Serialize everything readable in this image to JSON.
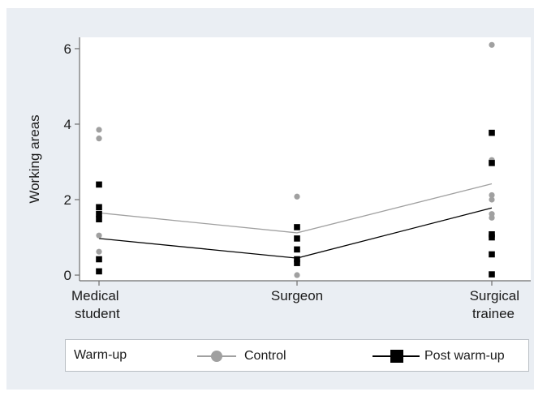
{
  "chart_data": {
    "type": "scatter",
    "ylabel": "Working areas",
    "xlabel": "",
    "categories": [
      "Medical\nstudent",
      "Surgeon",
      "Surgical\ntrainee"
    ],
    "yticks": [
      0,
      2,
      4,
      6
    ],
    "ylim": [
      -0.15,
      6.3
    ],
    "grid": false,
    "legend_position": "bottom",
    "legend_title": "Warm-up",
    "series": [
      {
        "name": "Control",
        "color": "#a0a0a0",
        "marker": "circle",
        "points": [
          {
            "c": 0,
            "y": 3.85
          },
          {
            "c": 0,
            "y": 3.62
          },
          {
            "c": 0,
            "y": 1.55
          },
          {
            "c": 0,
            "y": 1.05
          },
          {
            "c": 0,
            "y": 0.62
          },
          {
            "c": 1,
            "y": 2.08
          },
          {
            "c": 1,
            "y": 0.0
          },
          {
            "c": 2,
            "y": 6.1
          },
          {
            "c": 2,
            "y": 3.05
          },
          {
            "c": 2,
            "y": 2.12
          },
          {
            "c": 2,
            "y": 2.0
          },
          {
            "c": 2,
            "y": 1.62
          },
          {
            "c": 2,
            "y": 1.52
          }
        ],
        "line": [
          1.65,
          1.12,
          2.42
        ]
      },
      {
        "name": "Post warm-up",
        "color": "#000000",
        "marker": "square",
        "points": [
          {
            "c": 0,
            "y": 2.4
          },
          {
            "c": 0,
            "y": 1.8
          },
          {
            "c": 0,
            "y": 1.62
          },
          {
            "c": 0,
            "y": 1.48
          },
          {
            "c": 0,
            "y": 0.42
          },
          {
            "c": 0,
            "y": 0.1
          },
          {
            "c": 1,
            "y": 1.27
          },
          {
            "c": 1,
            "y": 0.97
          },
          {
            "c": 1,
            "y": 0.68
          },
          {
            "c": 1,
            "y": 0.42
          },
          {
            "c": 1,
            "y": 0.32
          },
          {
            "c": 2,
            "y": 3.77
          },
          {
            "c": 2,
            "y": 2.97
          },
          {
            "c": 2,
            "y": 1.08
          },
          {
            "c": 2,
            "y": 1.0
          },
          {
            "c": 2,
            "y": 0.55
          },
          {
            "c": 2,
            "y": 0.02
          }
        ],
        "line": [
          0.97,
          0.45,
          1.78
        ]
      }
    ]
  }
}
